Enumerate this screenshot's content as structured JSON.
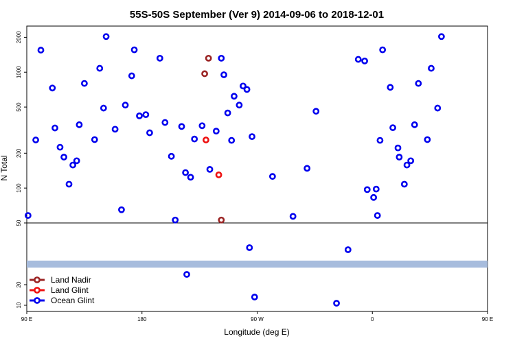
{
  "chart_data": {
    "type": "scatter",
    "title": "55S-50S September (Ver 9)   2014-09-06 to 2018-12-01",
    "xlabel": "Longitude (deg E)",
    "ylabel": "N Total",
    "xlim": [
      90,
      450
    ],
    "x_ticks": [
      {
        "value": 90,
        "label": "90 E"
      },
      {
        "value": 180,
        "label": "180"
      },
      {
        "value": 270,
        "label": "90 W"
      },
      {
        "value": 360,
        "label": "0"
      },
      {
        "value": 450,
        "label": "90 E"
      }
    ],
    "upper_panel": {
      "scale": "log",
      "ylim": [
        50,
        2500
      ],
      "y_ticks": [
        {
          "value": 50,
          "label": "50"
        },
        {
          "value": 100,
          "label": "100"
        },
        {
          "value": 200,
          "label": "200"
        },
        {
          "value": 500,
          "label": "500"
        },
        {
          "value": 1000,
          "label": "1000"
        },
        {
          "value": 2000,
          "label": "2000"
        }
      ]
    },
    "lower_panel": {
      "scale": "linear",
      "ylim": [
        7,
        50
      ],
      "y_ticks": [
        {
          "value": 10,
          "label": "10"
        },
        {
          "value": 20,
          "label": "20"
        }
      ],
      "band": {
        "y0": 28.3,
        "y1": 31.7,
        "color": "#a7bcdd"
      }
    },
    "legend": {
      "position": "bottom-left",
      "entries": [
        {
          "label": "Land Nadir",
          "color": "#9b2424"
        },
        {
          "label": "Land Glint",
          "color": "#ee1111"
        },
        {
          "label": "Ocean Glint",
          "color": "#0000ee"
        }
      ]
    },
    "series": [
      {
        "name": "Ocean Glint",
        "color": "#0000ee",
        "points": [
          [
            91,
            58
          ],
          [
            97,
            260
          ],
          [
            101,
            1550
          ],
          [
            110,
            730
          ],
          [
            112,
            330
          ],
          [
            116,
            225
          ],
          [
            119,
            185
          ],
          [
            123,
            108
          ],
          [
            126,
            158
          ],
          [
            129,
            172
          ],
          [
            131,
            352
          ],
          [
            135,
            800
          ],
          [
            143,
            262
          ],
          [
            147,
            1080
          ],
          [
            150,
            490
          ],
          [
            152,
            2030
          ],
          [
            159,
            322
          ],
          [
            164,
            65
          ],
          [
            167,
            520
          ],
          [
            172,
            930
          ],
          [
            174,
            1560
          ],
          [
            178,
            420
          ],
          [
            183,
            430
          ],
          [
            186,
            300
          ],
          [
            194,
            1320
          ],
          [
            198,
            368
          ],
          [
            203,
            188
          ],
          [
            206,
            53
          ],
          [
            211,
            340
          ],
          [
            214,
            136
          ],
          [
            218,
            124
          ],
          [
            221,
            265
          ],
          [
            227,
            345
          ],
          [
            233,
            145
          ],
          [
            238,
            310
          ],
          [
            242,
            1320
          ],
          [
            244,
            950
          ],
          [
            247,
            445
          ],
          [
            250,
            258
          ],
          [
            252,
            620
          ],
          [
            256,
            520
          ],
          [
            259,
            760
          ],
          [
            262,
            710
          ],
          [
            266,
            278
          ],
          [
            282,
            126
          ],
          [
            298,
            57
          ],
          [
            309,
            148
          ],
          [
            316,
            460
          ],
          [
            349,
            1290
          ],
          [
            354,
            1250
          ],
          [
            356,
            97
          ],
          [
            361,
            83
          ],
          [
            363,
            98
          ],
          [
            364,
            58
          ],
          [
            366,
            258
          ],
          [
            368,
            1560
          ],
          [
            374,
            740
          ],
          [
            376,
            332
          ],
          [
            380,
            222
          ],
          [
            381,
            185
          ],
          [
            385,
            108
          ],
          [
            387,
            158
          ],
          [
            390,
            172
          ],
          [
            393,
            352
          ],
          [
            396,
            800
          ],
          [
            403,
            262
          ],
          [
            406,
            1080
          ],
          [
            411,
            490
          ],
          [
            414,
            2030
          ]
        ],
        "points_lower": [
          [
            264,
            38
          ],
          [
            268,
            14
          ],
          [
            215,
            25
          ],
          [
            332,
            11
          ],
          [
            341,
            37
          ]
        ]
      },
      {
        "name": "Land Nadir",
        "color": "#9b2424",
        "points": [
          [
            229,
            970
          ],
          [
            232,
            1320
          ],
          [
            242,
            53
          ]
        ]
      },
      {
        "name": "Land Glint",
        "color": "#ee1111",
        "points": [
          [
            230,
            260
          ],
          [
            240,
            130
          ]
        ]
      }
    ]
  }
}
